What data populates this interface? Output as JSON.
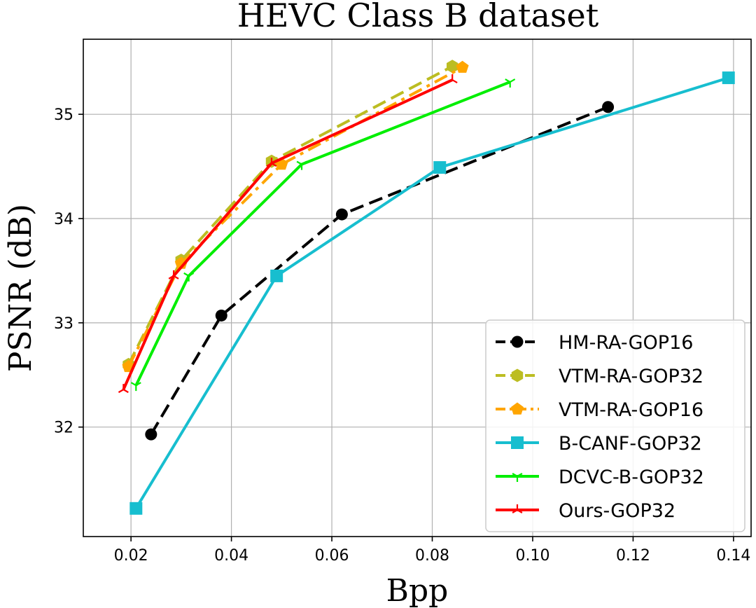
{
  "chart_data": {
    "type": "line",
    "title": "HEVC Class B dataset",
    "xlabel": "Bpp",
    "ylabel": "PSNR (dB)",
    "xlim": [
      0.0105,
      0.1435
    ],
    "ylim": [
      30.95,
      35.72
    ],
    "xticks": [
      0.02,
      0.04,
      0.06,
      0.08,
      0.1,
      0.12,
      0.14
    ],
    "xtick_labels": [
      "0.02",
      "0.04",
      "0.06",
      "0.08",
      "0.10",
      "0.12",
      "0.14"
    ],
    "yticks": [
      32,
      33,
      34,
      35
    ],
    "ytick_labels": [
      "32",
      "33",
      "34",
      "35"
    ],
    "grid": true,
    "legend_position": "lower-right",
    "series": [
      {
        "name": "HM-RA-GOP16",
        "color": "#000000",
        "dash": "dashed",
        "marker": "circle",
        "x": [
          0.024,
          0.038,
          0.062,
          0.115
        ],
        "y": [
          31.93,
          33.07,
          34.04,
          35.07
        ]
      },
      {
        "name": "VTM-RA-GOP32",
        "color": "#bcbd22",
        "dash": "dashed",
        "marker": "hexagon",
        "x": [
          0.0195,
          0.03,
          0.048,
          0.084
        ],
        "y": [
          32.6,
          33.6,
          34.55,
          35.46
        ]
      },
      {
        "name": "VTM-RA-GOP16",
        "color": "#ffa500",
        "dash": "dashdot",
        "marker": "pentagon",
        "x": [
          0.0195,
          0.03,
          0.05,
          0.086
        ],
        "y": [
          32.58,
          33.57,
          34.52,
          35.45
        ]
      },
      {
        "name": "B-CANF-GOP32",
        "color": "#17becf",
        "dash": "solid",
        "marker": "square",
        "x": [
          0.021,
          0.049,
          0.0815,
          0.139
        ],
        "y": [
          31.22,
          33.45,
          34.49,
          35.35
        ]
      },
      {
        "name": "DCVC-B-GOP32",
        "color": "#00ee00",
        "dash": "solid",
        "marker": "tri-down",
        "x": [
          0.021,
          0.0315,
          0.054,
          0.0955
        ],
        "y": [
          32.4,
          33.45,
          34.52,
          35.31
        ]
      },
      {
        "name": "Ours-GOP32",
        "color": "#ff0000",
        "dash": "solid",
        "marker": "tri-up",
        "x": [
          0.0185,
          0.0285,
          0.048,
          0.084
        ],
        "y": [
          32.36,
          33.45,
          34.53,
          35.33
        ]
      }
    ]
  }
}
